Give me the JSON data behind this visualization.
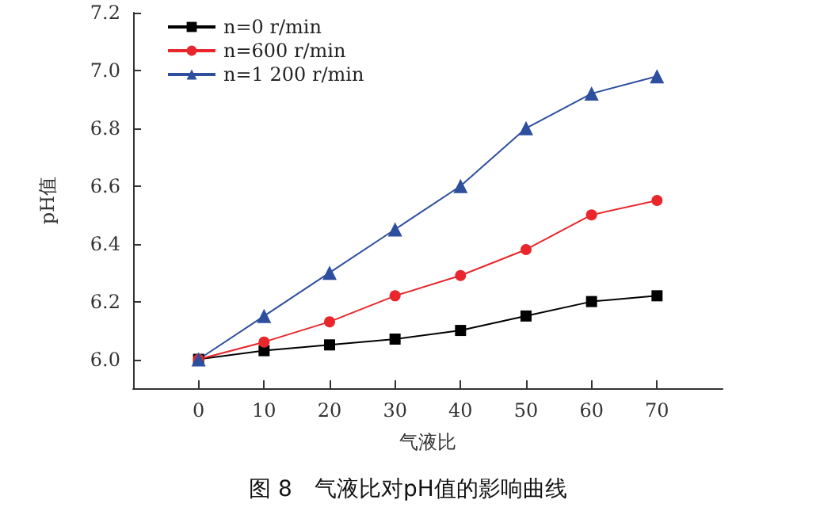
{
  "chart_data": {
    "type": "line",
    "title": "图 8　气液比对pH值的影响曲线",
    "xlabel": "气液比",
    "ylabel": "pH值",
    "x": [
      0,
      10,
      20,
      30,
      40,
      50,
      60,
      70
    ],
    "series": [
      {
        "name": "n=0 r/min",
        "color": "#000000",
        "marker": "square",
        "values": [
          6.0,
          6.03,
          6.05,
          6.07,
          6.1,
          6.15,
          6.2,
          6.22
        ]
      },
      {
        "name": "n=600 r/min",
        "color": "#e8262b",
        "marker": "circle",
        "values": [
          6.0,
          6.06,
          6.13,
          6.22,
          6.29,
          6.38,
          6.5,
          6.55
        ]
      },
      {
        "name": "n=1 200 r/min",
        "color": "#2e4f9e",
        "marker": "triangle",
        "values": [
          6.0,
          6.15,
          6.3,
          6.45,
          6.6,
          6.8,
          6.92,
          6.98
        ]
      }
    ],
    "xlim": [
      -10,
      80
    ],
    "xticks": [
      0,
      10,
      20,
      30,
      40,
      50,
      60,
      70
    ],
    "ylim": [
      5.9,
      7.2
    ],
    "yticks": [
      {
        "value": 6,
        "label": "6.0"
      },
      6.2,
      6.4,
      6.6,
      6.8,
      {
        "value": 7,
        "label": "7.0"
      },
      7.2
    ],
    "grid": false,
    "legend": "top left"
  }
}
